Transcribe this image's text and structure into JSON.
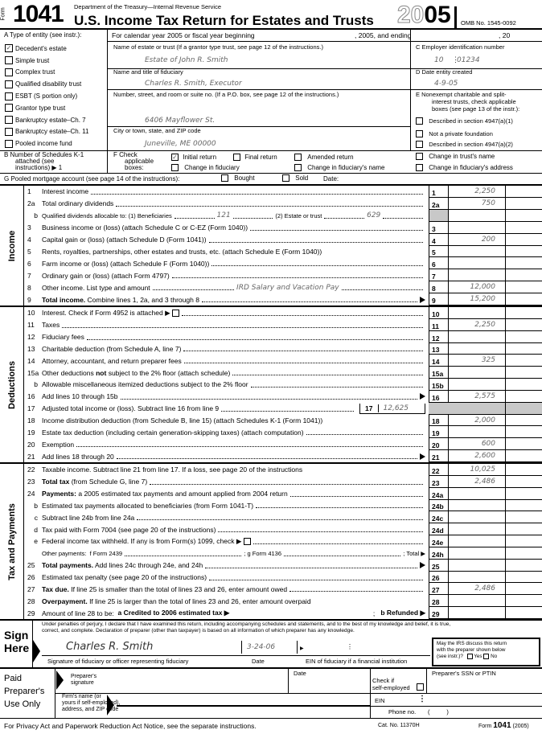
{
  "header": {
    "form_word": "Form",
    "form_number": "1041",
    "department": "Department of the Treasury—Internal Revenue Service",
    "title": "U.S. Income Tax Return for Estates and Trusts",
    "year_outline": "20",
    "year_bold": "05",
    "omb": "OMB No. 1545-0092"
  },
  "row_a": {
    "label": "A  Type of entity (see instr.):",
    "calendar_text": "For calendar year 2005 or fiscal year beginning",
    "and_ending": ", 2005, and ending",
    "twenty": ", 20"
  },
  "entity_types": [
    {
      "label": "Decedent's estate",
      "checked": true
    },
    {
      "label": "Simple trust",
      "checked": false
    },
    {
      "label": "Complex trust",
      "checked": false
    },
    {
      "label": "Qualified disability trust",
      "checked": false
    },
    {
      "label": "ESBT (S portion only)",
      "checked": false
    },
    {
      "label": "Grantor type trust",
      "checked": false
    },
    {
      "label": "Bankruptcy estate–Ch. 7",
      "checked": false
    },
    {
      "label": "Bankruptcy estate–Ch. 11",
      "checked": false
    },
    {
      "label": "Pooled income fund",
      "checked": false
    }
  ],
  "name_block": {
    "name_label": "Name of estate or trust (If a grantor type trust, see page 12 of the instructions.)",
    "name_value": "Estate of John R. Smith",
    "fiduciary_label": "Name and title of fiduciary",
    "fiduciary_value": "Charles R. Smith, Executor",
    "street_label": "Number, street, and room or suite no. (If a P.O. box, see page 12 of the instructions.)",
    "street_value": "6406 Mayflower St.",
    "city_label": "City or town, state, and ZIP code",
    "city_value": "Juneville, ME 00000"
  },
  "right_block": {
    "c_label": "C  Employer identification number",
    "ein_prefix": "10",
    "ein_suffix": "01234",
    "d_label": "D  Date entity created",
    "d_value": "4-9-05",
    "e_label_1": "E  Nonexempt charitable and split-",
    "e_label_2": "interest trusts, check applicable",
    "e_label_3": "boxes (see page 13 of the instr.):",
    "e_options": [
      "Described in section 4947(a)(1)",
      "Not a private foundation",
      "Described in section 4947(a)(2)"
    ]
  },
  "row_b": {
    "label_1": "B  Number of Schedules K-1",
    "label_2": "attached (see",
    "label_3": "instructions) ▶ 1"
  },
  "row_f": {
    "label_1": "F  Check",
    "label_2": "applicable",
    "label_3": "boxes:",
    "initial_return": "Initial return",
    "final_return": "Final return",
    "amended_return": "Amended return",
    "change_trust_name": "Change in trust's name",
    "change_fiduciary": "Change in fiduciary",
    "change_fiduciary_name": "Change in fiduciary's name",
    "change_fiduciary_address": "Change in fiduciary's address",
    "initial_checked": true
  },
  "row_g": {
    "label": "G  Pooled mortgage account (see page 14 of the instructions):",
    "bought": "Bought",
    "sold": "Sold",
    "date": "Date:"
  },
  "sections": [
    {
      "title": "Income",
      "rows": [
        {
          "n": "1",
          "segs": [
            {
              "t": "Interest income"
            },
            {
              "d": 1
            }
          ],
          "box": "1",
          "amt": "2,250"
        },
        {
          "n": "2a",
          "segs": [
            {
              "t": "Total ordinary dividends"
            },
            {
              "d": 1
            }
          ],
          "box": "2a",
          "amt": "750"
        },
        {
          "n": "b",
          "ind": 1,
          "segs": [
            {
              "t": "Qualified dividends allocable to: (1) Beneficiaries",
              "s": 1
            },
            {
              "d": 1
            },
            {
              "v": "121"
            },
            {
              "d": 1
            },
            {
              "t": "(2) Estate or trust",
              "s": 1
            },
            {
              "d": 1
            },
            {
              "v": "629"
            },
            {
              "d": 1
            }
          ],
          "box": "",
          "amt": "",
          "shadebox": 1
        },
        {
          "n": "3",
          "segs": [
            {
              "t": "Business income or (loss) (attach Schedule C or C-EZ (Form 1040))"
            },
            {
              "d": 1
            }
          ],
          "box": "3",
          "amt": ""
        },
        {
          "n": "4",
          "segs": [
            {
              "t": "Capital gain or (loss) (attach Schedule D (Form 1041))"
            },
            {
              "d": 1
            }
          ],
          "box": "4",
          "amt": "200"
        },
        {
          "n": "5",
          "segs": [
            {
              "t": "Rents, royalties, partnerships, other estates and trusts, etc. (attach Schedule E (Form 1040))"
            }
          ],
          "box": "5",
          "amt": ""
        },
        {
          "n": "6",
          "segs": [
            {
              "t": "Farm income or (loss) (attach Schedule F (Form 1040))"
            },
            {
              "d": 1
            }
          ],
          "box": "6",
          "amt": ""
        },
        {
          "n": "7",
          "segs": [
            {
              "t": "Ordinary gain or (loss) (attach Form 4797)"
            },
            {
              "d": 1
            }
          ],
          "box": "7",
          "amt": ""
        },
        {
          "n": "8",
          "segs": [
            {
              "t": "Other income. List type and amount"
            },
            {
              "d": 1
            },
            {
              "v": "IRD Salary and Vacation Pay"
            },
            {
              "d": 1
            }
          ],
          "box": "8",
          "amt": "12,000"
        },
        {
          "n": "9",
          "segs": [
            {
              "b": "Total income."
            },
            {
              "t": " Combine lines 1, 2a, and 3 through 8"
            },
            {
              "d": 1
            },
            {
              "a": 1
            }
          ],
          "box": "9",
          "amt": "15,200"
        }
      ]
    },
    {
      "title": "Deductions",
      "rows": [
        {
          "n": "10",
          "segs": [
            {
              "t": "Interest. Check if Form 4952 is attached ▶ "
            },
            {
              "cb": 1
            },
            {
              "d": 1
            }
          ],
          "box": "10",
          "amt": ""
        },
        {
          "n": "11",
          "segs": [
            {
              "t": "Taxes"
            },
            {
              "d": 1
            }
          ],
          "box": "11",
          "amt": "2,250"
        },
        {
          "n": "12",
          "segs": [
            {
              "t": "Fiduciary fees"
            },
            {
              "d": 1
            }
          ],
          "box": "12",
          "amt": ""
        },
        {
          "n": "13",
          "segs": [
            {
              "t": "Charitable deduction (from Schedule A, line 7)"
            },
            {
              "d": 1
            }
          ],
          "box": "13",
          "amt": ""
        },
        {
          "n": "14",
          "segs": [
            {
              "t": "Attorney, accountant, and return preparer fees"
            },
            {
              "d": 1
            }
          ],
          "box": "14",
          "amt": "325"
        },
        {
          "n": "15a",
          "segs": [
            {
              "t": "Other deductions "
            },
            {
              "b": "not"
            },
            {
              "t": " subject to the 2% floor (attach schedule)"
            },
            {
              "d": 1
            }
          ],
          "box": "15a",
          "amt": ""
        },
        {
          "n": "b",
          "ind": 1,
          "segs": [
            {
              "t": "Allowable miscellaneous itemized deductions subject to the 2% floor"
            },
            {
              "d": 1
            }
          ],
          "box": "15b",
          "amt": ""
        },
        {
          "n": "16",
          "segs": [
            {
              "t": "Add lines 10 through 15b"
            },
            {
              "d": 1
            },
            {
              "a": 1
            }
          ],
          "box": "16",
          "amt": "2,575"
        },
        {
          "n": "17",
          "segs": [
            {
              "t": "Adjusted total income or (loss). Subtract line 16 from line 9"
            },
            {
              "d": 1
            },
            {
              "ib": "17",
              "v": "12,625"
            }
          ],
          "box": "",
          "amt": "",
          "shadeall": 1
        },
        {
          "n": "18",
          "segs": [
            {
              "t": "Income distribution deduction (from Schedule B, line 15) (attach Schedules K-1 (Form 1041))"
            }
          ],
          "box": "18",
          "amt": "2,000"
        },
        {
          "n": "19",
          "segs": [
            {
              "t": "Estate tax deduction (including certain generation-skipping taxes) (attach computation)"
            },
            {
              "d": 1
            }
          ],
          "box": "19",
          "amt": ""
        },
        {
          "n": "20",
          "segs": [
            {
              "t": "Exemption"
            },
            {
              "d": 1
            }
          ],
          "box": "20",
          "amt": "600"
        },
        {
          "n": "21",
          "segs": [
            {
              "t": "Add lines 18 through 20"
            },
            {
              "d": 1
            },
            {
              "a": 1
            }
          ],
          "box": "21",
          "amt": "2,600"
        }
      ]
    },
    {
      "title": "Tax and Payments",
      "rows": [
        {
          "n": "22",
          "segs": [
            {
              "t": "Taxable income. Subtract line 21 from line 17. If a loss, see page 20 of the instructions"
            }
          ],
          "box": "22",
          "amt": "10,025"
        },
        {
          "n": "23",
          "segs": [
            {
              "b": "Total tax"
            },
            {
              "t": " (from Schedule G, line 7)"
            },
            {
              "d": 1
            }
          ],
          "box": "23",
          "amt": "2,486"
        },
        {
          "n": "24",
          "segs": [
            {
              "b": "Payments:"
            },
            {
              "t": " a 2005 estimated tax payments and amount applied from 2004 return"
            },
            {
              "d": 1
            }
          ],
          "box": "24a",
          "amt": ""
        },
        {
          "n": "b",
          "ind": 1,
          "segs": [
            {
              "t": "Estimated tax payments allocated to beneficiaries (from Form 1041-T)"
            },
            {
              "d": 1
            }
          ],
          "box": "24b",
          "amt": ""
        },
        {
          "n": "c",
          "ind": 1,
          "segs": [
            {
              "t": "Subtract line 24b from line 24a"
            },
            {
              "d": 1
            }
          ],
          "box": "24c",
          "amt": ""
        },
        {
          "n": "d",
          "ind": 1,
          "segs": [
            {
              "t": "Tax paid with Form 7004 (see page 20 of the instructions)"
            },
            {
              "d": 1
            }
          ],
          "box": "24d",
          "amt": ""
        },
        {
          "n": "e",
          "ind": 1,
          "segs": [
            {
              "t": "Federal income tax withheld. If any is from Form(s) 1099, check ▶ "
            },
            {
              "cb": 1
            },
            {
              "d": 1
            }
          ],
          "box": "24e",
          "amt": ""
        },
        {
          "n": "",
          "segs": [
            {
              "t": "Other payments:  f Form 2439",
              "s": 1
            },
            {
              "d": 1
            },
            {
              "t": "; g Form 4136",
              "s": 1
            },
            {
              "d": 1
            },
            {
              "t": "; Total ▶",
              "s": 1
            }
          ],
          "box": "24h",
          "amt": ""
        },
        {
          "n": "25",
          "segs": [
            {
              "b": "Total payments."
            },
            {
              "t": " Add lines 24c through 24e, and 24h"
            },
            {
              "d": 1
            },
            {
              "a": 1
            }
          ],
          "box": "25",
          "amt": ""
        },
        {
          "n": "26",
          "segs": [
            {
              "t": "Estimated tax penalty (see page 20 of the instructions)"
            },
            {
              "d": 1
            }
          ],
          "box": "26",
          "amt": ""
        },
        {
          "n": "27",
          "segs": [
            {
              "b": "Tax due."
            },
            {
              "t": " If line 25 is smaller than the total of lines 23 and 26, enter amount owed"
            },
            {
              "d": 1
            }
          ],
          "box": "27",
          "amt": "2,486"
        },
        {
          "n": "28",
          "segs": [
            {
              "b": "Overpayment."
            },
            {
              "t": " If line 25 is larger than the total of lines 23 and 26, enter amount overpaid"
            }
          ],
          "box": "28",
          "amt": ""
        },
        {
          "n": "29",
          "segs": [
            {
              "t": "Amount of line 28 to be:  "
            },
            {
              "b": "a Credited to 2006 estimated tax ▶"
            },
            {
              "d": 0
            },
            {
              "t": ";   "
            },
            {
              "b": "b Refunded ▶"
            }
          ],
          "box": "29",
          "amt": ""
        }
      ]
    }
  ],
  "sign": {
    "title_1": "Sign",
    "title_2": "Here",
    "perjury_1": "Under penalties of perjury, I declare that I have examined this return, including accompanying schedules and statements, and to the best of my knowledge and belief, it is true,",
    "perjury_2": "correct, and complete. Declaration of preparer (other than taxpayer) is based on all information of which preparer has any knowledge.",
    "signature_value": "Charles R. Smith",
    "date_value": "3-24-06",
    "signature_label": "Signature of fiduciary or officer representing fiduciary",
    "date_label": "Date",
    "ein_label": "EIN of fiduciary if a financial institution",
    "discuss_1": "May the IRS discuss this return",
    "discuss_2": "with the preparer shown below",
    "discuss_3": "(see instr.)?",
    "yes": "Yes",
    "no": "No"
  },
  "preparer": {
    "title_1": "Paid",
    "title_2": "Preparer's",
    "title_3": "Use Only",
    "signature_1": "Preparer's",
    "signature_2": "signature",
    "date": "Date",
    "self_employed_1": "Check if",
    "self_employed_2": "self-employed",
    "ssn": "Preparer's SSN or PTIN",
    "firm_1": "Firm's name (or",
    "firm_2": "yours if self-employed),",
    "firm_3": "address, and ZIP code",
    "ein": "EIN",
    "phone": "Phone no.",
    "phone_parens": "(          )"
  },
  "footer": {
    "privacy": "For Privacy Act and Paperwork Reduction Act Notice, see the separate instructions.",
    "cat": "Cat. No. 11370H",
    "form_word": "Form",
    "form_num": "1041",
    "year": "(2005)"
  }
}
